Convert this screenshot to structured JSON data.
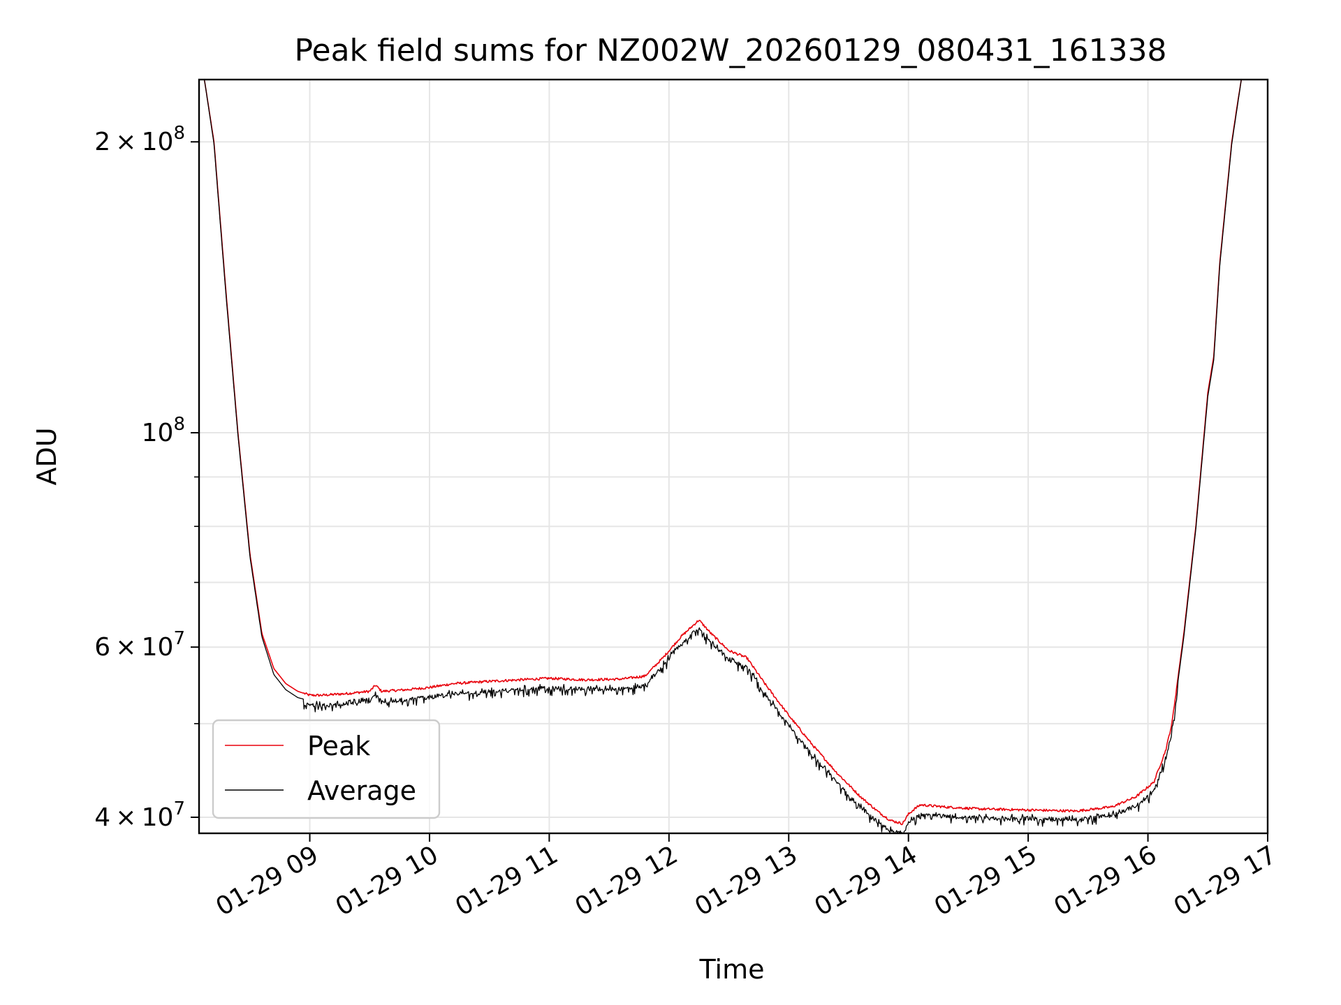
{
  "chart_data": {
    "type": "line",
    "title": "Peak field sums for NZ002W_20260129_080431_161338",
    "xlabel": "Time",
    "ylabel": "ADU",
    "yscale": "log",
    "ylim": [
      38500000,
      232000000
    ],
    "xlim_hours": [
      8.0753,
      17.0
    ],
    "grid": true,
    "legend_position": "lower-left",
    "x_ticks": [
      {
        "value": 9,
        "label": "01-29 09"
      },
      {
        "value": 10,
        "label": "01-29 10"
      },
      {
        "value": 11,
        "label": "01-29 11"
      },
      {
        "value": 12,
        "label": "01-29 12"
      },
      {
        "value": 13,
        "label": "01-29 13"
      },
      {
        "value": 14,
        "label": "01-29 14"
      },
      {
        "value": 15,
        "label": "01-29 15"
      },
      {
        "value": 16,
        "label": "01-29 16"
      },
      {
        "value": 17,
        "label": "01-29 17"
      }
    ],
    "y_major_ticks": [
      {
        "value": 40000000,
        "mantissa": "4",
        "exponent": "7"
      },
      {
        "value": 60000000,
        "mantissa": "6",
        "exponent": "7"
      },
      {
        "value": 100000000,
        "mantissa": "",
        "exponent": "8"
      },
      {
        "value": 200000000,
        "mantissa": "2",
        "exponent": "8"
      }
    ],
    "y_minor_ticks": [
      50000000,
      70000000,
      80000000,
      90000000
    ],
    "series": [
      {
        "name": "Peak",
        "color": "#e8000b",
        "x": [
          8.0753,
          8.12,
          8.2,
          8.3,
          8.4,
          8.5,
          8.6,
          8.7,
          8.8,
          8.9,
          9.0,
          9.1,
          9.3,
          9.5,
          9.55,
          9.6,
          9.8,
          10.0,
          10.2,
          10.5,
          11.0,
          11.3,
          11.6,
          11.8,
          11.95,
          12.1,
          12.25,
          12.35,
          12.5,
          12.65,
          12.8,
          13.0,
          13.2,
          13.4,
          13.6,
          13.75,
          13.85,
          13.95,
          14.0,
          14.05,
          14.1,
          14.3,
          14.6,
          15.0,
          15.4,
          15.7,
          15.9,
          16.05,
          16.15,
          16.2,
          16.3,
          16.4,
          16.5,
          16.55,
          16.6,
          16.7,
          16.75,
          16.78
        ],
        "values": [
          232000000,
          232000000,
          200000000,
          140000000,
          100000000,
          75000000,
          62000000,
          57000000,
          55000000,
          54000000,
          53500000,
          53500000,
          53700000,
          54000000,
          54800000,
          54000000,
          54200000,
          54500000,
          55000000,
          55300000,
          55700000,
          55500000,
          55600000,
          56000000,
          58500000,
          61500000,
          64000000,
          62000000,
          59500000,
          58500000,
          55000000,
          51000000,
          47500000,
          44500000,
          42000000,
          40500000,
          39700000,
          39400000,
          40300000,
          40800000,
          41200000,
          41000000,
          40800000,
          40700000,
          40600000,
          41000000,
          42000000,
          43500000,
          47000000,
          50000000,
          62000000,
          80000000,
          110000000,
          120000000,
          150000000,
          200000000,
          220000000,
          232000000
        ]
      },
      {
        "name": "Average",
        "color": "#000000",
        "x": [
          8.0753,
          8.12,
          8.2,
          8.3,
          8.4,
          8.5,
          8.6,
          8.7,
          8.8,
          8.9,
          9.0,
          9.1,
          9.3,
          9.5,
          9.55,
          9.6,
          9.8,
          10.0,
          10.2,
          10.5,
          11.0,
          11.3,
          11.6,
          11.8,
          11.95,
          12.1,
          12.25,
          12.35,
          12.5,
          12.65,
          12.8,
          13.0,
          13.2,
          13.4,
          13.6,
          13.75,
          13.85,
          13.95,
          14.0,
          14.05,
          14.1,
          14.3,
          14.6,
          15.0,
          15.4,
          15.7,
          15.9,
          16.05,
          16.15,
          16.2,
          16.3,
          16.4,
          16.5,
          16.55,
          16.6,
          16.7,
          16.75,
          16.78
        ],
        "values": [
          232000000,
          232000000,
          199000000,
          139000000,
          99500000,
          74500000,
          61500000,
          56200000,
          54200000,
          53200000,
          52800000,
          52700000,
          53000000,
          53300000,
          54000000,
          53200000,
          53500000,
          53800000,
          54200000,
          54500000,
          55000000,
          54800000,
          54900000,
          55300000,
          58000000,
          61000000,
          63500000,
          61300000,
          58800000,
          57800000,
          54300000,
          50300000,
          46800000,
          43900000,
          41400000,
          39900000,
          39100000,
          38900000,
          39800000,
          40300000,
          40700000,
          40500000,
          40300000,
          40300000,
          40200000,
          40600000,
          41500000,
          43000000,
          46500000,
          49500000,
          61500000,
          79500000,
          109000000,
          119000000,
          149000000,
          199000000,
          219000000,
          232000000
        ]
      }
    ]
  }
}
